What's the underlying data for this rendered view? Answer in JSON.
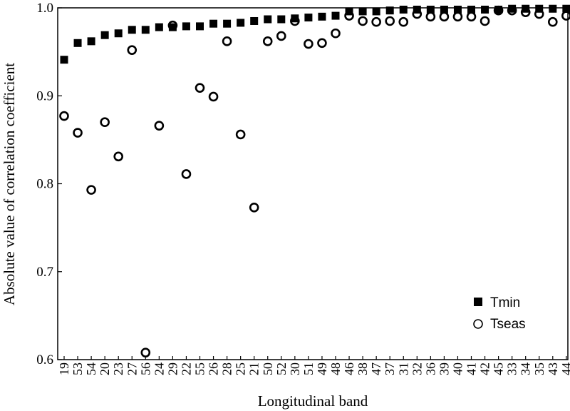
{
  "chart_data": {
    "type": "scatter",
    "xlabel": "Longitudinal band",
    "ylabel": "Absolute value of correlation coefficient",
    "ylim": [
      0.6,
      1.0
    ],
    "yticks": [
      "0.6",
      "0.7",
      "0.8",
      "0.9",
      "1.0"
    ],
    "grid": false,
    "legend_position": "bottom-right",
    "categories": [
      "19",
      "53",
      "54",
      "20",
      "23",
      "27",
      "56",
      "24",
      "29",
      "22",
      "55",
      "26",
      "28",
      "25",
      "21",
      "50",
      "52",
      "30",
      "51",
      "49",
      "48",
      "46",
      "38",
      "47",
      "37",
      "31",
      "32",
      "36",
      "39",
      "40",
      "41",
      "42",
      "45",
      "33",
      "34",
      "35",
      "43",
      "44"
    ],
    "series": [
      {
        "name": "Tmin",
        "marker": "filled-square",
        "color": "#000000",
        "values": [
          0.941,
          0.96,
          0.962,
          0.969,
          0.971,
          0.975,
          0.975,
          0.978,
          0.978,
          0.979,
          0.979,
          0.982,
          0.982,
          0.983,
          0.985,
          0.987,
          0.987,
          0.988,
          0.989,
          0.99,
          0.991,
          0.996,
          0.996,
          0.996,
          0.997,
          0.998,
          0.998,
          0.998,
          0.998,
          0.998,
          0.998,
          0.998,
          0.998,
          0.999,
          0.999,
          0.999,
          0.999,
          0.999
        ]
      },
      {
        "name": "Tseas",
        "marker": "open-circle",
        "color": "#000000",
        "values": [
          0.877,
          0.858,
          0.793,
          0.87,
          0.831,
          0.952,
          0.608,
          0.866,
          0.98,
          0.811,
          0.909,
          0.899,
          0.962,
          0.856,
          0.773,
          0.962,
          0.968,
          0.985,
          0.959,
          0.96,
          0.971,
          0.991,
          0.985,
          0.984,
          0.985,
          0.984,
          0.993,
          0.99,
          0.99,
          0.99,
          0.99,
          0.985,
          0.997,
          0.997,
          0.995,
          0.993,
          0.984,
          0.991
        ]
      }
    ]
  }
}
